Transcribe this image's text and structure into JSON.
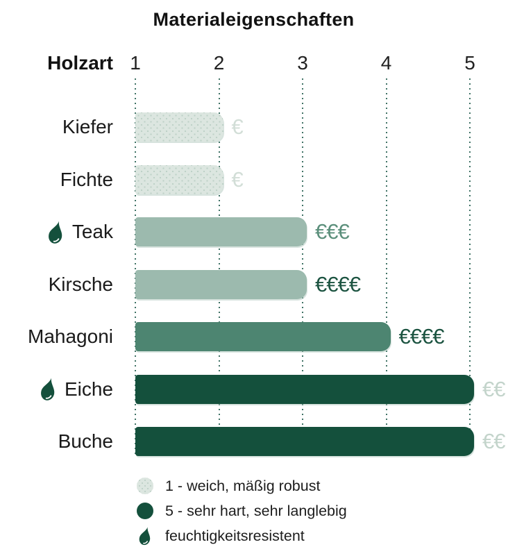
{
  "title": "Materialeigenschaften",
  "axis": {
    "label": "Holzart",
    "ticks": [
      "1",
      "2",
      "3",
      "4",
      "5"
    ]
  },
  "chart_data": {
    "type": "bar",
    "orientation": "horizontal",
    "title": "Materialeigenschaften",
    "category_axis_label": "Holzart",
    "value_axis_ticks": [
      1,
      2,
      3,
      4,
      5
    ],
    "value_axis_range": [
      1,
      5
    ],
    "grid": "dotted-vertical",
    "rows": [
      {
        "label": "Kiefer",
        "value": 2,
        "price": "€",
        "tone": "light",
        "price_tone": "faint",
        "droplet": false
      },
      {
        "label": "Fichte",
        "value": 2,
        "price": "€",
        "tone": "light",
        "price_tone": "faint",
        "droplet": false
      },
      {
        "label": "Teak",
        "value": 3,
        "price": "€€€",
        "tone": "medium",
        "price_tone": "medium",
        "droplet": true
      },
      {
        "label": "Kirsche",
        "value": 3,
        "price": "€€€€",
        "tone": "medium",
        "price_tone": "dark",
        "droplet": false
      },
      {
        "label": "Mahagoni",
        "value": 4,
        "price": "€€€€",
        "tone": "medium_dark",
        "price_tone": "dark",
        "droplet": false
      },
      {
        "label": "Eiche",
        "value": 5,
        "price": "€€",
        "tone": "dark",
        "price_tone": "pale",
        "droplet": true
      },
      {
        "label": "Buche",
        "value": 5,
        "price": "€€",
        "tone": "dark",
        "price_tone": "pale",
        "droplet": false
      }
    ]
  },
  "legend": [
    {
      "icon": "light-circle",
      "label": "1 - weich, mäßig robust"
    },
    {
      "icon": "dark-circle",
      "label": "5 - sehr hart, sehr langlebig"
    },
    {
      "icon": "droplet",
      "label": "feuchtigkeitsresistent"
    }
  ],
  "colors": {
    "bar": {
      "light": "#dce6e0",
      "medium": "#9cbaae",
      "medium_dark": "#4d8571",
      "dark": "#14503c"
    },
    "bar_dot": "#bed1c7",
    "price": {
      "faint": "#d2ded7",
      "medium": "#5b8f7b",
      "dark": "#1b5340",
      "pale": "#c3d4cb"
    },
    "gridline": "#3f7265",
    "droplet": "#14503c",
    "text": "#1a1a1a"
  }
}
